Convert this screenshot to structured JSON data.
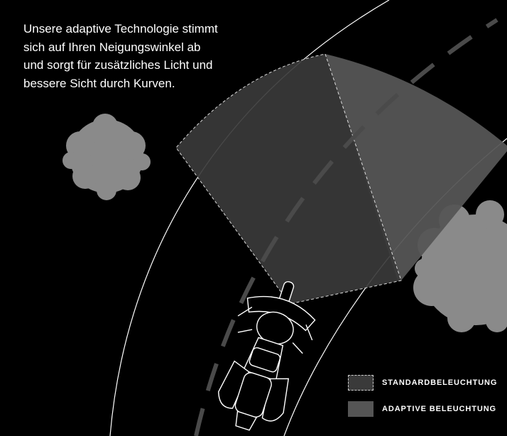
{
  "intro": {
    "lines": [
      "Unsere adaptive Technologie stimmt",
      "sich auf Ihren Neigungswinkel ab",
      "und sorgt für zusätzliches Licht und",
      "bessere Sicht durch Kurven."
    ]
  },
  "legend": {
    "items": [
      {
        "label": "STANDARDBELEUCHTUNG",
        "swatch": "dashed-dark-gray"
      },
      {
        "label": "ADAPTIVE BELEUCHTUNG",
        "swatch": "solid-gray"
      }
    ]
  },
  "colors": {
    "background": "#000000",
    "standard_beam": "#3a3a3a",
    "adaptive_beam": "#555555",
    "tree": "#8a8a8a",
    "road_edge": "#ffffff",
    "center_line": "#4a4a4a"
  }
}
